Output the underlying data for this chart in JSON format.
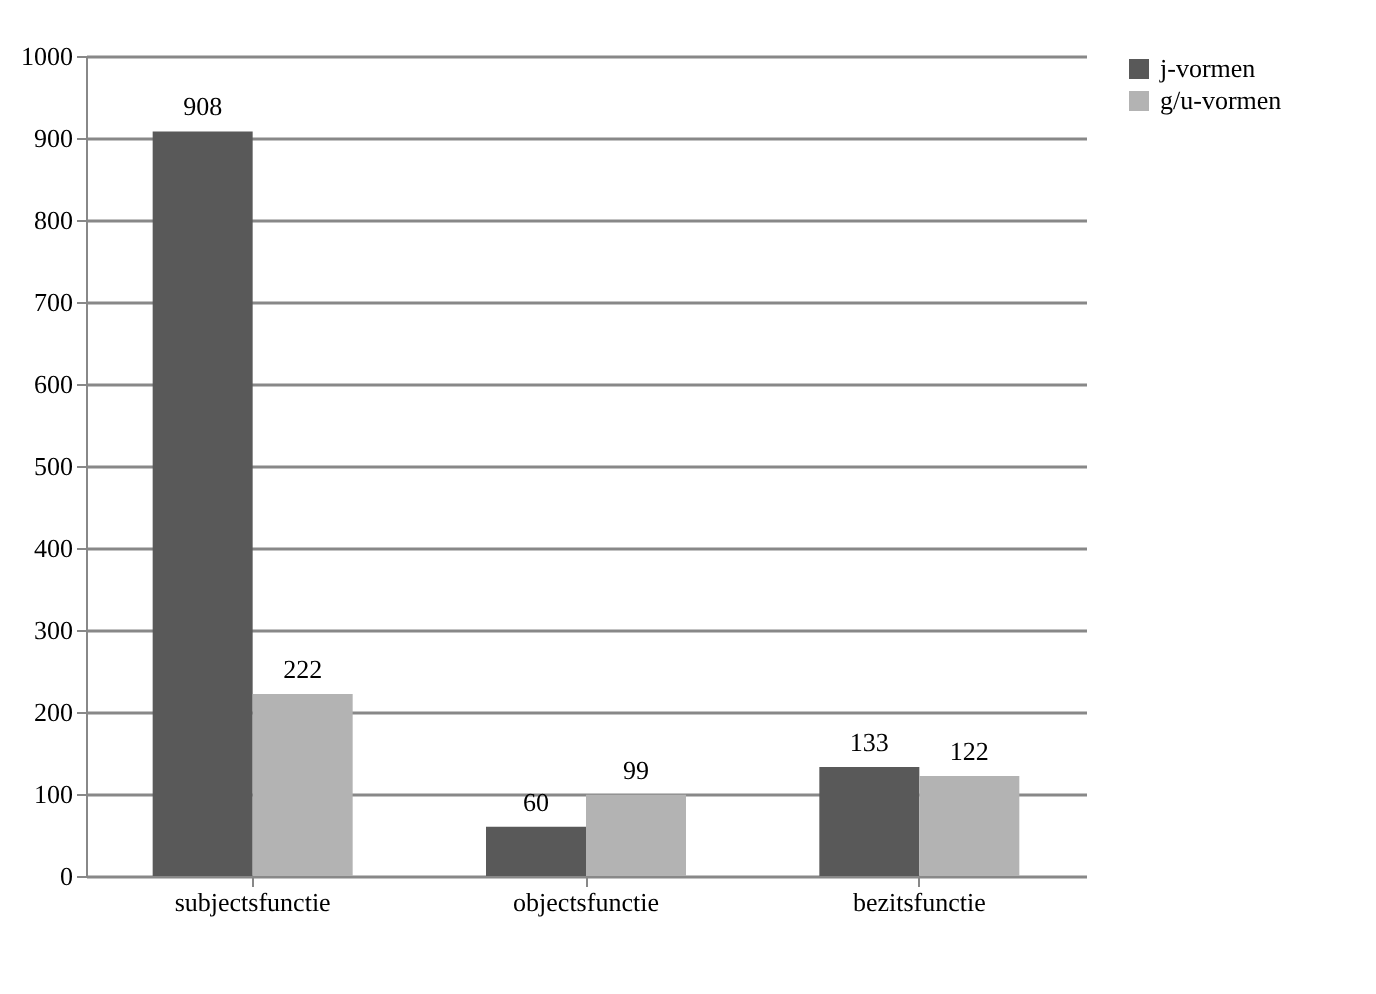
{
  "chart_data": {
    "type": "bar",
    "categories": [
      "subjectsfunctie",
      "objectsfunctie",
      "bezitsfunctie"
    ],
    "series": [
      {
        "name": "j-vormen",
        "color": "#595959",
        "values": [
          908,
          60,
          133
        ]
      },
      {
        "name": "g/u-vormen",
        "color": "#b3b3b3",
        "values": [
          222,
          99,
          122
        ]
      }
    ],
    "ylim": [
      0,
      1000
    ],
    "yticks": [
      0,
      100,
      200,
      300,
      400,
      500,
      600,
      700,
      800,
      900,
      1000
    ],
    "grid": "y",
    "legend": "right",
    "data_labels": true
  }
}
